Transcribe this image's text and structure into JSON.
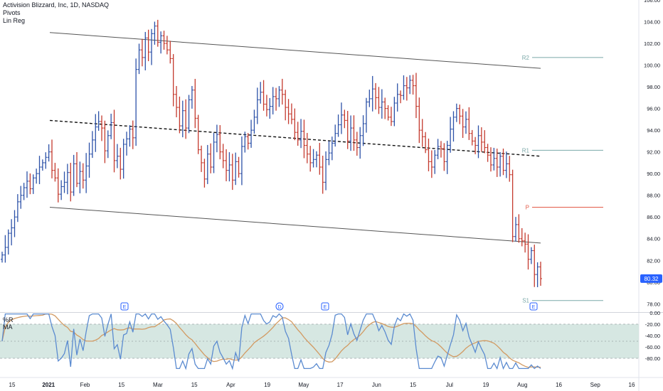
{
  "legend": {
    "symbol_title": "Activision Blizzard, Inc, 1D, NASDAQ",
    "indicators": [
      "Pivots",
      "Lin Reg"
    ]
  },
  "oscillator_legend": [
    "%R",
    "MA"
  ],
  "colors": {
    "up": "#2d52a8",
    "down": "#c43a2e",
    "channel": "#555555",
    "mid": "#111111",
    "pivot_r": "#7aa8a8",
    "pivot_p": "#e35b48",
    "osc_wr": "#5b8bd0",
    "osc_ma": "#d29a62",
    "osc_band": "#cfe3dd",
    "last_price_bg": "#2962ff"
  },
  "chart_data": [
    {
      "type": "candlestick-ohlc",
      "title": "Activision Blizzard, Inc, 1D, NASDAQ",
      "y_axis": {
        "range": [
          77.3,
          106
        ],
        "ticks": [
          78,
          80,
          82,
          84,
          86,
          88,
          90,
          92,
          94,
          96,
          98,
          100,
          102,
          104,
          106
        ]
      },
      "x_axis_labels": [
        "15",
        "2021",
        "Feb",
        "15",
        "Mar",
        "15",
        "Apr",
        "19",
        "May",
        "17",
        "Jun",
        "15",
        "Jul",
        "19",
        "Aug",
        "16",
        "Sep",
        "16"
      ],
      "last_price": "80.32",
      "pivots": [
        {
          "label": "R2",
          "value": 100.7
        },
        {
          "label": "R1",
          "value": 92.15
        },
        {
          "label": "P",
          "value": 86.9
        },
        {
          "label": "S1",
          "value": 78.3
        }
      ],
      "event_markers": [
        "E",
        "D",
        "E",
        "E"
      ],
      "regression_channel": {
        "upper": [
          103.0,
          99.7
        ],
        "middle": [
          94.9,
          91.6
        ],
        "lower": [
          86.9,
          83.6
        ]
      },
      "series_close": [
        82.5,
        83.2,
        84.5,
        85.0,
        86.0,
        87.4,
        88.0,
        88.7,
        89.3,
        88.6,
        89.6,
        90.0,
        90.6,
        91.0,
        91.5,
        92.0,
        90.3,
        89.6,
        88.1,
        88.8,
        89.2,
        90.1,
        88.3,
        90.9,
        89.1,
        90.2,
        89.4,
        90.7,
        91.8,
        93.1,
        94.3,
        94.8,
        94.2,
        92.1,
        93.5,
        94.7,
        91.2,
        91.6,
        90.4,
        92.7,
        93.2,
        94.1,
        93.3,
        99.6,
        101.4,
        100.7,
        102.5,
        101.2,
        102.9,
        103.6,
        102.1,
        102.7,
        102.0,
        101.4,
        100.6,
        97.3,
        96.1,
        94.4,
        95.8,
        94.2,
        96.8,
        97.7,
        95.1,
        92.2,
        91.0,
        89.5,
        91.8,
        90.6,
        92.9,
        93.6,
        92.0,
        91.2,
        90.3,
        90.8,
        89.4,
        91.1,
        90.0,
        92.5,
        93.4,
        92.8,
        94.0,
        95.2,
        96.8,
        97.5,
        96.4,
        95.9,
        96.2,
        97.1,
        96.9,
        97.7,
        97.3,
        96.1,
        95.5,
        95.0,
        93.8,
        93.1,
        93.9,
        92.6,
        91.8,
        91.0,
        91.3,
        91.7,
        90.6,
        89.2,
        91.3,
        91.9,
        92.8,
        93.7,
        94.5,
        95.4,
        94.9,
        93.0,
        94.2,
        93.1,
        92.4,
        93.5,
        94.6,
        96.6,
        96.9,
        97.8,
        97.0,
        96.1,
        96.6,
        96.0,
        95.2,
        94.8,
        96.5,
        97.3,
        97.2,
        98.1,
        97.9,
        98.6,
        98.1,
        96.2,
        94.0,
        93.4,
        92.2,
        91.1,
        90.6,
        91.7,
        92.5,
        92.3,
        91.1,
        92.6,
        94.1,
        95.2,
        96.0,
        95.3,
        94.3,
        95.0,
        93.7,
        93.0,
        92.6,
        93.5,
        92.9,
        92.4,
        91.7,
        90.8,
        91.4,
        90.6,
        91.6,
        90.3,
        90.9,
        89.9,
        84.2,
        85.3,
        84.0,
        83.8,
        83.5,
        82.1,
        82.9,
        80.7,
        81.4,
        80.32
      ],
      "oscillator": {
        "name": "%R",
        "ma_name": "MA",
        "range": [
          -100,
          0
        ],
        "ticks": [
          0,
          -20,
          -40,
          -60,
          -80
        ],
        "band": [
          -80,
          -20
        ],
        "midline": -50
      }
    }
  ]
}
